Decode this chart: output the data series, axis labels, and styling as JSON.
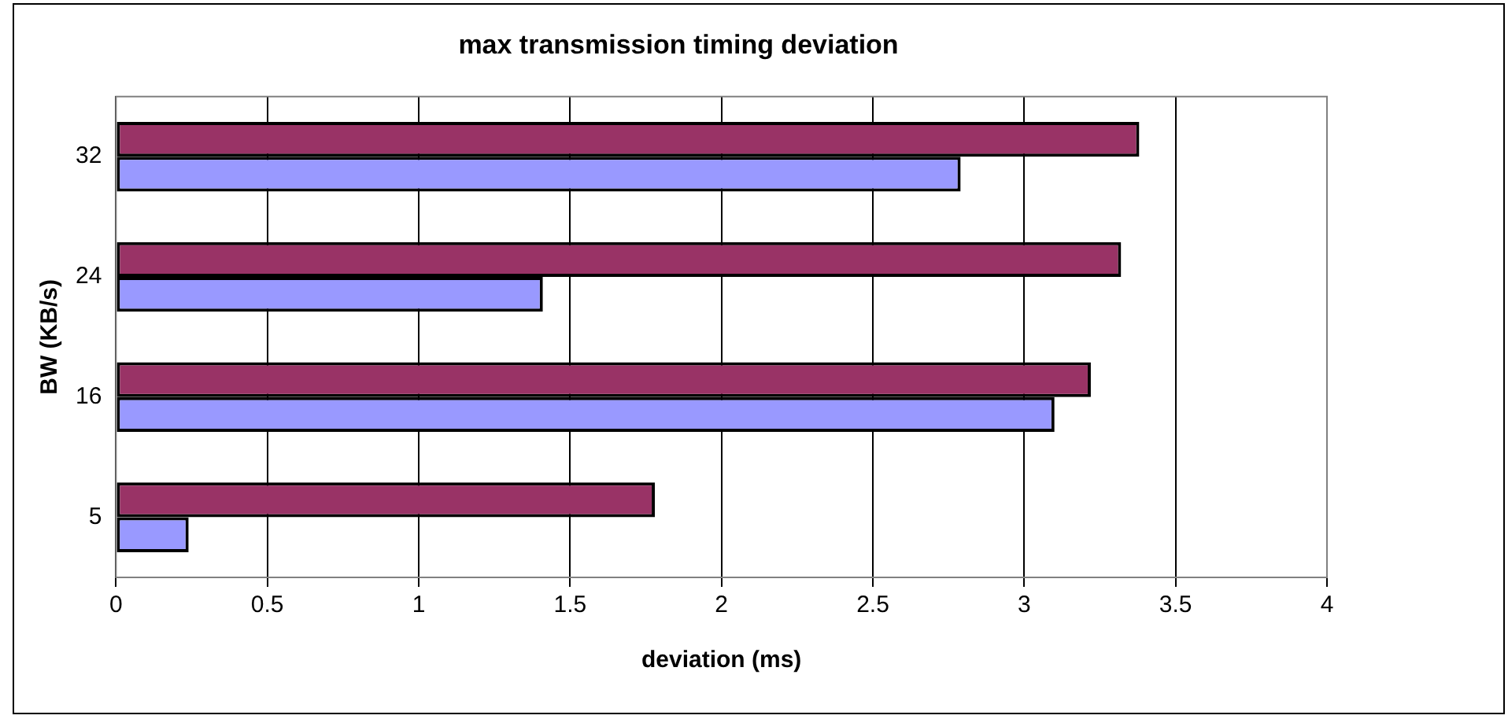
{
  "chart_data": {
    "type": "bar",
    "orientation": "horizontal",
    "title": "max transmission timing deviation",
    "xlabel": "deviation (ms)",
    "ylabel": "BW (KB/s)",
    "categories": [
      "32",
      "24",
      "16",
      "5"
    ],
    "series": [
      {
        "color": "#993366",
        "values": [
          3.38,
          3.32,
          3.22,
          1.78
        ]
      },
      {
        "color": "#9999ff",
        "values": [
          2.79,
          1.41,
          3.1,
          0.24
        ]
      }
    ],
    "xlim": [
      0,
      4
    ],
    "xticks": [
      0,
      0.5,
      1,
      1.5,
      2,
      2.5,
      3,
      3.5,
      4
    ],
    "grid": "x"
  }
}
